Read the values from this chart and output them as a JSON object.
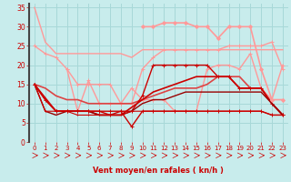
{
  "background_color": "#c8ecec",
  "grid_color": "#a8d8d8",
  "xlabel": "Vent moyen/en rafales ( kn/h )",
  "xlabel_color": "#cc0000",
  "tick_color": "#cc0000",
  "arrow_color": "#cc0000",
  "ylim": [
    0,
    36
  ],
  "xlim": [
    -0.5,
    23.5
  ],
  "yticks": [
    0,
    5,
    10,
    15,
    20,
    25,
    30,
    35
  ],
  "xticks": [
    0,
    1,
    2,
    3,
    4,
    5,
    6,
    7,
    8,
    9,
    10,
    11,
    12,
    13,
    14,
    15,
    16,
    17,
    18,
    19,
    20,
    21,
    22,
    23
  ],
  "lines": [
    {
      "x": [
        0,
        1,
        2,
        3,
        4,
        5,
        6,
        7,
        8,
        9,
        10,
        11,
        12,
        13,
        14,
        15,
        16,
        17,
        18,
        19,
        20,
        21,
        22,
        23
      ],
      "y": [
        35,
        26,
        23,
        23,
        23,
        23,
        23,
        23,
        23,
        22,
        24,
        24,
        24,
        24,
        24,
        24,
        24,
        24,
        24,
        24,
        24,
        24,
        24,
        24
      ],
      "color": "#ff9999",
      "lw": 1.0,
      "marker": null,
      "ms": 0
    },
    {
      "x": [
        0,
        1,
        2,
        3,
        4,
        5,
        6,
        7,
        8,
        9,
        10,
        11,
        12,
        13,
        14,
        15,
        16,
        17,
        18,
        19,
        20,
        21,
        22,
        23
      ],
      "y": [
        25,
        23,
        22,
        19,
        15,
        15,
        15,
        15,
        10,
        10,
        19,
        22,
        24,
        24,
        24,
        24,
        24,
        24,
        25,
        25,
        25,
        25,
        26,
        19
      ],
      "color": "#ff9999",
      "lw": 1.0,
      "marker": "+",
      "ms": 3
    },
    {
      "x": [
        3,
        4,
        5,
        6,
        7,
        8,
        9,
        10,
        11,
        12,
        13,
        14,
        15,
        16,
        17,
        18,
        19,
        20,
        21,
        22,
        23
      ],
      "y": [
        19,
        8,
        16,
        10,
        10,
        10,
        14,
        11,
        11,
        11,
        8,
        8,
        8,
        19,
        20,
        20,
        19,
        23,
        14,
        11,
        20
      ],
      "color": "#ff9999",
      "lw": 1.0,
      "marker": "+",
      "ms": 3
    },
    {
      "x": [
        0,
        1,
        2,
        3,
        4,
        5,
        6,
        7,
        8,
        9,
        10,
        11,
        12,
        13,
        14,
        15,
        16,
        17,
        18,
        19,
        20,
        21,
        22,
        23
      ],
      "y": [
        15,
        14,
        12,
        11,
        11,
        10,
        10,
        10,
        10,
        10,
        11,
        12,
        13,
        14,
        14,
        14,
        15,
        17,
        17,
        17,
        14,
        14,
        10,
        7
      ],
      "color": "#dd4444",
      "lw": 1.2,
      "marker": null,
      "ms": 0
    },
    {
      "x": [
        0,
        1,
        2,
        3,
        4,
        5,
        6,
        7,
        8,
        9,
        10,
        11,
        12,
        13,
        14,
        15,
        16,
        17,
        18,
        19,
        20,
        21,
        22,
        23
      ],
      "y": [
        15,
        11,
        8,
        8,
        8,
        8,
        8,
        7,
        8,
        8,
        12,
        20,
        20,
        20,
        20,
        20,
        20,
        17,
        17,
        14,
        14,
        14,
        10,
        7
      ],
      "color": "#cc0000",
      "lw": 1.0,
      "marker": "+",
      "ms": 3
    },
    {
      "x": [
        0,
        1,
        2,
        3,
        4,
        5,
        6,
        7,
        8,
        9,
        10,
        11,
        12,
        13,
        14,
        15,
        16,
        17,
        18,
        19,
        20,
        21,
        22,
        23
      ],
      "y": [
        15,
        11,
        8,
        8,
        8,
        8,
        7,
        7,
        7,
        9,
        11,
        13,
        14,
        15,
        16,
        17,
        17,
        17,
        17,
        14,
        14,
        14,
        10,
        7
      ],
      "color": "#cc0000",
      "lw": 1.2,
      "marker": null,
      "ms": 0
    },
    {
      "x": [
        0,
        1,
        2,
        3,
        4,
        5,
        6,
        7,
        8,
        9,
        10,
        11,
        12,
        13,
        14,
        15,
        16,
        17,
        18,
        19,
        20,
        21,
        22,
        23
      ],
      "y": [
        15,
        8,
        7,
        8,
        8,
        8,
        7,
        7,
        7,
        8,
        10,
        11,
        11,
        12,
        13,
        13,
        13,
        13,
        13,
        13,
        13,
        13,
        10,
        7
      ],
      "color": "#990000",
      "lw": 1.0,
      "marker": null,
      "ms": 0
    },
    {
      "x": [
        0,
        1,
        2,
        3,
        4,
        5,
        6,
        7,
        8,
        9,
        10,
        11,
        12,
        13,
        14,
        15,
        16,
        17,
        18,
        19,
        20,
        21,
        22,
        23
      ],
      "y": [
        15,
        8,
        8,
        8,
        7,
        7,
        7,
        7,
        7,
        8,
        8,
        8,
        8,
        8,
        8,
        8,
        8,
        8,
        8,
        8,
        8,
        8,
        7,
        7
      ],
      "color": "#cc0000",
      "lw": 0.8,
      "marker": "+",
      "ms": 2
    },
    {
      "x": [
        0,
        2,
        3,
        4,
        5,
        6,
        7,
        8,
        9,
        10,
        11,
        12,
        13,
        14,
        15,
        16,
        17,
        18,
        19,
        20,
        21,
        22,
        23
      ],
      "y": [
        15,
        8,
        8,
        8,
        8,
        8,
        8,
        8,
        4,
        8,
        8,
        8,
        8,
        8,
        8,
        8,
        8,
        8,
        8,
        8,
        8,
        7,
        7
      ],
      "color": "#cc0000",
      "lw": 1.0,
      "marker": "+",
      "ms": 3
    },
    {
      "x": [
        10,
        11,
        12,
        13,
        14,
        15,
        16,
        17,
        18,
        19,
        20,
        21,
        22,
        23
      ],
      "y": [
        30,
        30,
        31,
        31,
        31,
        30,
        30,
        27,
        30,
        30,
        30,
        19,
        11,
        11
      ],
      "color": "#ff9999",
      "lw": 1.2,
      "marker": "D",
      "ms": 2
    }
  ]
}
